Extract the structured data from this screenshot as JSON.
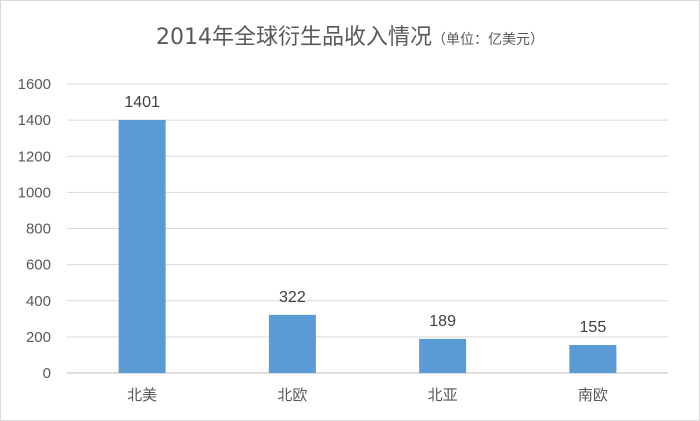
{
  "title": {
    "main": "2014年全球衍生品收入情况",
    "unit": "（单位：亿美元）"
  },
  "chart_data": {
    "type": "bar",
    "title": "2014年全球衍生品收入情况（单位：亿美元）",
    "categories": [
      "北美",
      "北欧",
      "北亚",
      "南欧"
    ],
    "values": [
      1401,
      322,
      189,
      155
    ],
    "data_labels": [
      "1401",
      "322",
      "189",
      "155"
    ],
    "ylim": [
      0,
      1600
    ],
    "yticks": [
      "0",
      "200",
      "400",
      "600",
      "800",
      "1000",
      "1200",
      "1400",
      "1600"
    ],
    "grid": true,
    "legend": "none",
    "bar_color": "#5b9bd5"
  }
}
